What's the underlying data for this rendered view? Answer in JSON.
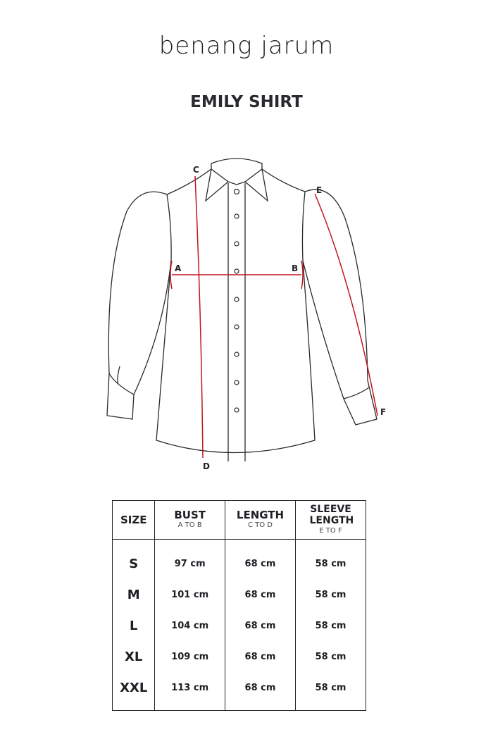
{
  "brand": {
    "logo_text": "benang jarum"
  },
  "title": "EMILY SHIRT",
  "diagram": {
    "points": {
      "A": "A",
      "B": "B",
      "C": "C",
      "D": "D",
      "E": "E",
      "F": "F"
    },
    "measure_color": "#c0161c",
    "outline_color": "#2a2a2e"
  },
  "table": {
    "headers": [
      {
        "label": "SIZE",
        "sub": ""
      },
      {
        "label": "BUST",
        "sub": "A TO B"
      },
      {
        "label": "LENGTH",
        "sub": "C TO D"
      },
      {
        "label": "SLEEVE LENGTH",
        "sub": "E TO F"
      }
    ],
    "rows": [
      {
        "size": "S",
        "bust": "97 cm",
        "length": "68 cm",
        "sleeve": "58 cm"
      },
      {
        "size": "M",
        "bust": "101 cm",
        "length": "68 cm",
        "sleeve": "58 cm"
      },
      {
        "size": "L",
        "bust": "104 cm",
        "length": "68 cm",
        "sleeve": "58 cm"
      },
      {
        "size": "XL",
        "bust": "109 cm",
        "length": "68 cm",
        "sleeve": "58 cm"
      },
      {
        "size": "XXL",
        "bust": "113 cm",
        "length": "68 cm",
        "sleeve": "58 cm"
      }
    ]
  }
}
